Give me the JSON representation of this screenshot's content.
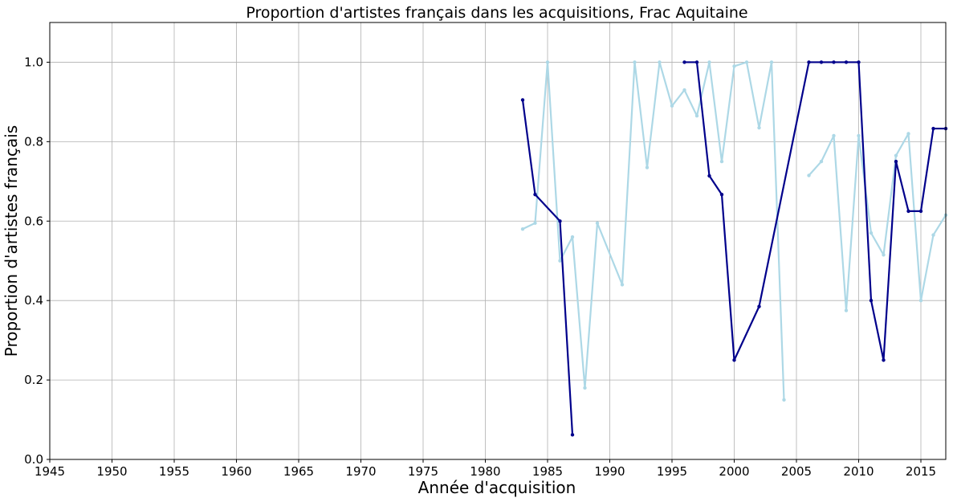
{
  "chart_data": {
    "type": "line",
    "title": "Proportion d'artistes français dans les acquisitions, Frac Aquitaine",
    "xlabel": "Année d'acquisition",
    "ylabel": "Proportion d'artistes français",
    "xlim": [
      1945,
      2017
    ],
    "ylim": [
      0.0,
      1.1
    ],
    "x_ticks": [
      1945,
      1950,
      1955,
      1960,
      1965,
      1970,
      1975,
      1980,
      1985,
      1990,
      1995,
      2000,
      2005,
      2010,
      2015
    ],
    "y_ticks": [
      0.0,
      0.2,
      0.4,
      0.6,
      0.8,
      1.0
    ],
    "y_tick_labels": [
      "0.0",
      "0.2",
      "0.4",
      "0.6",
      "0.8",
      "1.0"
    ],
    "grid": true,
    "series": [
      {
        "color": "#add8e6",
        "segments": [
          [
            [
              1983,
              0.58
            ],
            [
              1984,
              0.595
            ],
            [
              1985,
              1.0
            ],
            [
              1986,
              0.5
            ],
            [
              1987,
              0.56
            ],
            [
              1988,
              0.18
            ],
            [
              1989,
              0.595
            ],
            [
              1991,
              0.44
            ],
            [
              1992,
              1.0
            ],
            [
              1993,
              0.735
            ],
            [
              1994,
              1.0
            ],
            [
              1995,
              0.89
            ],
            [
              1996,
              0.93
            ],
            [
              1997,
              0.865
            ],
            [
              1998,
              1.0
            ],
            [
              1999,
              0.75
            ],
            [
              2000,
              0.99
            ],
            [
              2001,
              1.0
            ],
            [
              2002,
              0.835
            ],
            [
              2003,
              1.0
            ],
            [
              2004,
              0.15
            ]
          ],
          [
            [
              2006,
              0.715
            ],
            [
              2007,
              0.75
            ],
            [
              2008,
              0.815
            ],
            [
              2009,
              0.375
            ],
            [
              2010,
              0.815
            ],
            [
              2011,
              0.57
            ],
            [
              2012,
              0.515
            ],
            [
              2013,
              0.765
            ],
            [
              2014,
              0.82
            ],
            [
              2015,
              0.4
            ],
            [
              2016,
              0.565
            ],
            [
              2017,
              0.615
            ]
          ]
        ]
      },
      {
        "color": "#00008b",
        "segments": [
          [
            [
              1983,
              0.905
            ],
            [
              1984,
              0.667
            ],
            [
              1986,
              0.6
            ],
            [
              1987,
              0.062
            ]
          ],
          [
            [
              1996,
              1.0
            ],
            [
              1997,
              1.0
            ],
            [
              1998,
              0.714
            ],
            [
              1999,
              0.667
            ],
            [
              2000,
              0.25
            ],
            [
              2002,
              0.385
            ],
            [
              2006,
              1.0
            ],
            [
              2007,
              1.0
            ],
            [
              2008,
              1.0
            ],
            [
              2009,
              1.0
            ],
            [
              2010,
              1.0
            ],
            [
              2011,
              0.4
            ],
            [
              2012,
              0.25
            ],
            [
              2013,
              0.75
            ],
            [
              2014,
              0.625
            ],
            [
              2015,
              0.625
            ],
            [
              2016,
              0.833
            ],
            [
              2017,
              0.833
            ]
          ]
        ]
      }
    ]
  }
}
